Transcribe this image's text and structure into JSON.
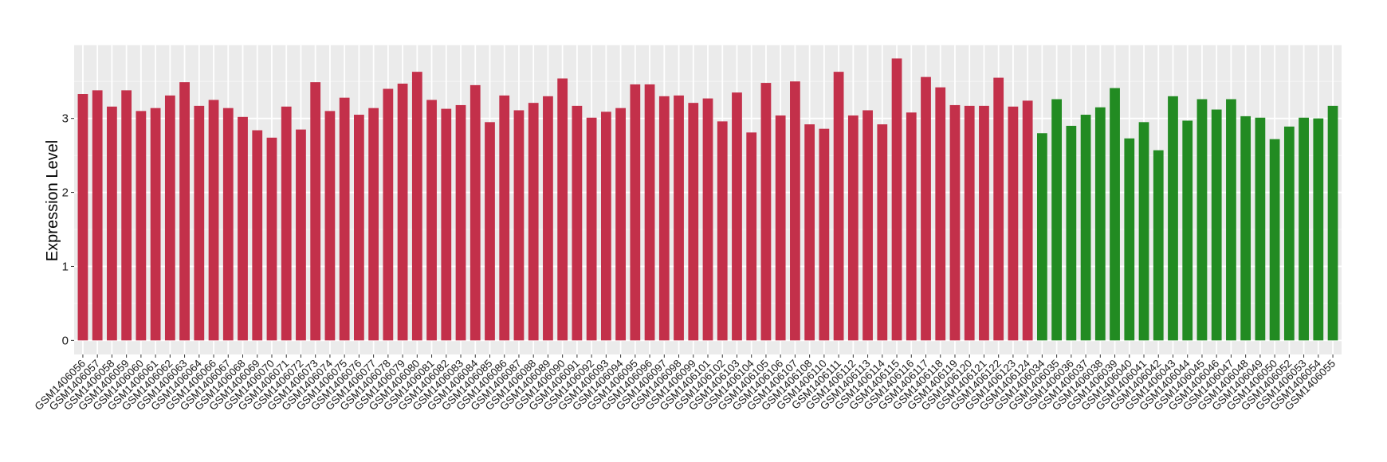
{
  "chart_data": {
    "type": "bar",
    "title": "",
    "xlabel": "",
    "ylabel": "Expression Level",
    "ylim": [
      -0.19,
      3.99
    ],
    "yticks": [
      0,
      1,
      2,
      3
    ],
    "grid": true,
    "colors": {
      "group_a": "#C3304A",
      "group_b": "#228B22"
    },
    "categories": [
      "GSM1406056",
      "GSM1406057",
      "GSM1406058",
      "GSM1406059",
      "GSM1406060",
      "GSM1406061",
      "GSM1406062",
      "GSM1406063",
      "GSM1406064",
      "GSM1406066",
      "GSM1406067",
      "GSM1406068",
      "GSM1406069",
      "GSM1406070",
      "GSM1406071",
      "GSM1406072",
      "GSM1406073",
      "GSM1406074",
      "GSM1406075",
      "GSM1406076",
      "GSM1406077",
      "GSM1406078",
      "GSM1406079",
      "GSM1406080",
      "GSM1406081",
      "GSM1406082",
      "GSM1406083",
      "GSM1406084",
      "GSM1406085",
      "GSM1406086",
      "GSM1406087",
      "GSM1406088",
      "GSM1406089",
      "GSM1406090",
      "GSM1406091",
      "GSM1406092",
      "GSM1406093",
      "GSM1406094",
      "GSM1406095",
      "GSM1406096",
      "GSM1406097",
      "GSM1406098",
      "GSM1406099",
      "GSM1406101",
      "GSM1406102",
      "GSM1406103",
      "GSM1406104",
      "GSM1406105",
      "GSM1406106",
      "GSM1406107",
      "GSM1406108",
      "GSM1406110",
      "GSM1406111",
      "GSM1406112",
      "GSM1406113",
      "GSM1406114",
      "GSM1406115",
      "GSM1406116",
      "GSM1406117",
      "GSM1406118",
      "GSM1406119",
      "GSM1406120",
      "GSM1406121",
      "GSM1406122",
      "GSM1406123",
      "GSM1406124",
      "GSM1406034",
      "GSM1406035",
      "GSM1406036",
      "GSM1406037",
      "GSM1406038",
      "GSM1406039",
      "GSM1406040",
      "GSM1406041",
      "GSM1406042",
      "GSM1406043",
      "GSM1406044",
      "GSM1406045",
      "GSM1406046",
      "GSM1406047",
      "GSM1406048",
      "GSM1406049",
      "GSM1406050",
      "GSM1406052",
      "GSM1406053",
      "GSM1406054",
      "GSM1406055"
    ],
    "values": [
      3.33,
      3.38,
      3.16,
      3.38,
      3.1,
      3.14,
      3.31,
      3.49,
      3.17,
      3.25,
      3.14,
      3.02,
      2.84,
      2.74,
      3.16,
      2.85,
      3.49,
      3.1,
      3.28,
      3.05,
      3.14,
      3.4,
      3.47,
      3.63,
      3.25,
      3.13,
      3.18,
      3.45,
      2.95,
      3.31,
      3.11,
      3.21,
      3.3,
      3.54,
      3.17,
      3.01,
      3.09,
      3.14,
      3.46,
      3.46,
      3.3,
      3.31,
      3.21,
      3.27,
      2.96,
      3.35,
      2.81,
      3.48,
      3.04,
      3.5,
      2.92,
      2.86,
      3.63,
      3.04,
      3.11,
      2.92,
      3.81,
      3.08,
      3.56,
      3.42,
      3.18,
      3.17,
      3.17,
      3.55,
      3.16,
      3.24,
      2.8,
      3.26,
      2.9,
      3.05,
      3.15,
      3.41,
      2.73,
      2.95,
      2.57,
      3.3,
      2.97,
      3.26,
      3.12,
      3.26,
      3.03,
      3.01,
      2.72,
      2.89,
      3.01,
      3.0,
      3.17
    ],
    "groups": [
      "a",
      "a",
      "a",
      "a",
      "a",
      "a",
      "a",
      "a",
      "a",
      "a",
      "a",
      "a",
      "a",
      "a",
      "a",
      "a",
      "a",
      "a",
      "a",
      "a",
      "a",
      "a",
      "a",
      "a",
      "a",
      "a",
      "a",
      "a",
      "a",
      "a",
      "a",
      "a",
      "a",
      "a",
      "a",
      "a",
      "a",
      "a",
      "a",
      "a",
      "a",
      "a",
      "a",
      "a",
      "a",
      "a",
      "a",
      "a",
      "a",
      "a",
      "a",
      "a",
      "a",
      "a",
      "a",
      "a",
      "a",
      "a",
      "a",
      "a",
      "a",
      "a",
      "a",
      "a",
      "a",
      "a",
      "b",
      "b",
      "b",
      "b",
      "b",
      "b",
      "b",
      "b",
      "b",
      "b",
      "b",
      "b",
      "b",
      "b",
      "b",
      "b",
      "b",
      "b",
      "b",
      "b",
      "b"
    ]
  }
}
